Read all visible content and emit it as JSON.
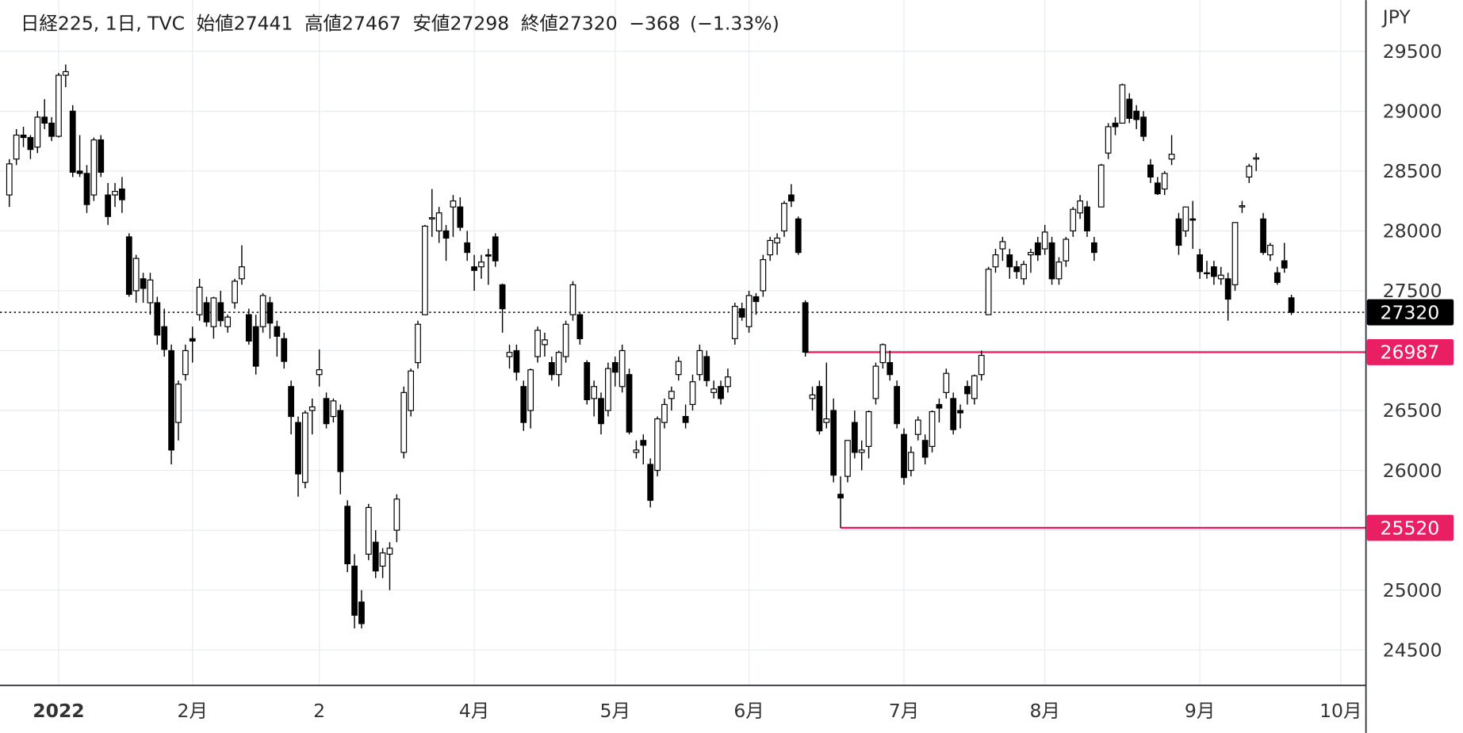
{
  "chart_data": {
    "type": "candlestick",
    "legend": {
      "name": "日経225, 1日, TVC",
      "labels": [
        "始値",
        "高値",
        "安値",
        "終値"
      ],
      "values": [
        27441,
        27467,
        27298,
        27320
      ],
      "change": "−368",
      "change_pct": "(−1.33%)"
    },
    "y_axis_label": "JPY",
    "ylim": [
      24204,
      29928
    ],
    "yticks": [
      24500,
      25000,
      25500,
      26000,
      26500,
      27000,
      27500,
      28000,
      28500,
      29000,
      29500
    ],
    "grid": true,
    "up_color": "#ffffff",
    "down_color": "#000000",
    "wick_color": "#000000",
    "price_lines": [
      {
        "value": 27320,
        "color": "#000000",
        "style": "dotted"
      },
      {
        "value": 26987,
        "color": "#e91e63",
        "style": "solid"
      },
      {
        "value": 25520,
        "color": "#e91e63",
        "style": "solid"
      }
    ],
    "categories": [
      null,
      null,
      null,
      null,
      null,
      null,
      null,
      "2022",
      null,
      null,
      null,
      null,
      null,
      null,
      null,
      null,
      null,
      null,
      null,
      null,
      null,
      null,
      null,
      null,
      null,
      null,
      "2月",
      null,
      null,
      null,
      null,
      null,
      null,
      null,
      null,
      null,
      null,
      null,
      null,
      null,
      null,
      null,
      null,
      null,
      "2",
      null,
      null,
      null,
      null,
      null,
      null,
      null,
      null,
      null,
      null,
      null,
      null,
      null,
      null,
      null,
      null,
      null,
      null,
      null,
      null,
      null,
      "4月",
      null,
      null,
      null,
      null,
      null,
      null,
      null,
      null,
      null,
      null,
      null,
      null,
      null,
      null,
      null,
      null,
      null,
      null,
      null,
      "5月",
      null,
      null,
      null,
      null,
      null,
      null,
      null,
      null,
      null,
      null,
      null,
      null,
      null,
      null,
      null,
      null,
      null,
      null,
      "6月",
      null,
      null,
      null,
      null,
      null,
      null,
      null,
      null,
      null,
      null,
      null,
      null,
      null,
      null,
      null,
      null,
      null,
      null,
      null,
      null,
      null,
      "7月",
      null,
      null,
      null,
      null,
      null,
      null,
      null,
      null,
      null,
      null,
      null,
      null,
      null,
      null,
      null,
      null,
      null,
      null,
      null,
      "8月",
      null,
      null,
      null,
      null,
      null,
      null,
      null,
      null,
      null,
      null,
      null,
      null,
      null,
      null,
      null,
      null,
      null,
      null,
      null,
      null,
      null,
      "9月",
      null,
      null,
      null,
      null,
      null,
      null,
      null,
      null,
      null,
      null,
      null,
      null,
      null,
      null,
      null,
      null,
      null,
      null,
      null,
      "10月"
    ],
    "ohlc": [
      [
        28300,
        28600,
        28200,
        28560
      ],
      [
        28600,
        28850,
        28550,
        28800
      ],
      [
        28800,
        28870,
        28700,
        28780
      ],
      [
        28780,
        28800,
        28600,
        28680
      ],
      [
        28700,
        29000,
        28650,
        28950
      ],
      [
        28950,
        29100,
        28850,
        28900
      ],
      [
        28900,
        28950,
        28750,
        28790
      ],
      [
        28790,
        29320,
        28780,
        29300
      ],
      [
        29300,
        29390,
        29200,
        29330
      ],
      [
        29000,
        29050,
        28450,
        28490
      ],
      [
        28500,
        28800,
        28450,
        28480
      ],
      [
        28480,
        28550,
        28150,
        28220
      ],
      [
        28300,
        28780,
        28250,
        28760
      ],
      [
        28760,
        28800,
        28450,
        28490
      ],
      [
        28300,
        28400,
        28050,
        28120
      ],
      [
        28300,
        28400,
        28200,
        28330
      ],
      [
        28350,
        28450,
        28150,
        28260
      ],
      [
        27950,
        27980,
        27450,
        27470
      ],
      [
        27500,
        27800,
        27400,
        27770
      ],
      [
        27600,
        27650,
        27400,
        27520
      ],
      [
        27400,
        27650,
        27300,
        27590
      ],
      [
        27400,
        27450,
        27050,
        27130
      ],
      [
        27200,
        27350,
        26950,
        27010
      ],
      [
        27000,
        27050,
        26050,
        26170
      ],
      [
        26400,
        26750,
        26250,
        26720
      ],
      [
        26800,
        27050,
        26750,
        27000
      ],
      [
        27100,
        27200,
        26900,
        27080
      ],
      [
        27300,
        27600,
        27250,
        27530
      ],
      [
        27400,
        27450,
        27200,
        27240
      ],
      [
        27200,
        27450,
        27100,
        27440
      ],
      [
        27400,
        27500,
        27200,
        27250
      ],
      [
        27200,
        27300,
        27150,
        27280
      ],
      [
        27400,
        27600,
        27350,
        27580
      ],
      [
        27600,
        27880,
        27550,
        27700
      ],
      [
        27300,
        27350,
        27050,
        27080
      ],
      [
        27200,
        27300,
        26800,
        26870
      ],
      [
        27200,
        27480,
        27150,
        27460
      ],
      [
        27400,
        27450,
        27100,
        27230
      ],
      [
        27200,
        27250,
        26950,
        27120
      ],
      [
        27100,
        27150,
        26850,
        26910
      ],
      [
        26700,
        26750,
        26300,
        26450
      ],
      [
        26400,
        26450,
        25780,
        25970
      ],
      [
        25900,
        26500,
        25850,
        26480
      ],
      [
        26500,
        26600,
        26300,
        26530
      ],
      [
        26800,
        27010,
        26700,
        26840
      ],
      [
        26600,
        26650,
        26350,
        26390
      ],
      [
        26450,
        26600,
        26400,
        26580
      ],
      [
        26500,
        26550,
        25800,
        25990
      ],
      [
        25700,
        25750,
        25150,
        25220
      ],
      [
        25200,
        25300,
        24680,
        24790
      ],
      [
        24900,
        25000,
        24680,
        24720
      ],
      [
        25300,
        25720,
        25250,
        25690
      ],
      [
        25400,
        25500,
        25100,
        25160
      ],
      [
        25200,
        25350,
        25100,
        25310
      ],
      [
        25300,
        25400,
        25000,
        25350
      ],
      [
        25500,
        25800,
        25400,
        25760
      ],
      [
        26150,
        26700,
        26100,
        26650
      ],
      [
        26500,
        26850,
        26450,
        26830
      ],
      [
        26900,
        27250,
        26850,
        27220
      ],
      [
        27300,
        28050,
        27300,
        28040
      ],
      [
        28100,
        28350,
        27950,
        28110
      ],
      [
        28000,
        28200,
        27900,
        28150
      ],
      [
        28000,
        28050,
        27750,
        27940
      ],
      [
        28200,
        28300,
        27950,
        28250
      ],
      [
        28200,
        28280,
        28000,
        28030
      ],
      [
        27900,
        28000,
        27750,
        27820
      ],
      [
        27700,
        27800,
        27500,
        27670
      ],
      [
        27700,
        27800,
        27600,
        27740
      ],
      [
        27800,
        27850,
        27550,
        27790
      ],
      [
        27950,
        27980,
        27700,
        27750
      ],
      [
        27550,
        27560,
        27150,
        27350
      ],
      [
        26950,
        27050,
        26850,
        26985
      ],
      [
        27000,
        27050,
        26750,
        26820
      ],
      [
        26700,
        26750,
        26330,
        26400
      ],
      [
        26500,
        26850,
        26350,
        26840
      ],
      [
        26950,
        27200,
        26900,
        27170
      ],
      [
        27050,
        27150,
        26950,
        27090
      ],
      [
        26900,
        26950,
        26750,
        26800
      ],
      [
        26800,
        27000,
        26700,
        26985
      ],
      [
        26950,
        27250,
        26900,
        27220
      ],
      [
        27300,
        27580,
        27250,
        27550
      ],
      [
        27300,
        27320,
        27050,
        27100
      ],
      [
        26900,
        26920,
        26550,
        26590
      ],
      [
        26600,
        26750,
        26450,
        26700
      ],
      [
        26600,
        26650,
        26300,
        26390
      ],
      [
        26500,
        26900,
        26450,
        26850
      ],
      [
        26900,
        26950,
        26700,
        26820
      ],
      [
        26700,
        27050,
        26650,
        27000
      ],
      [
        26800,
        26850,
        26300,
        26320
      ],
      [
        26150,
        26250,
        26100,
        26170
      ],
      [
        26250,
        26300,
        26050,
        26210
      ],
      [
        26050,
        26100,
        25690,
        25750
      ],
      [
        26000,
        26450,
        25950,
        26430
      ],
      [
        26400,
        26600,
        26350,
        26550
      ],
      [
        26600,
        26700,
        26500,
        26660
      ],
      [
        26800,
        26950,
        26750,
        26910
      ],
      [
        26450,
        26550,
        26350,
        26400
      ],
      [
        26550,
        26800,
        26500,
        26740
      ],
      [
        26800,
        27050,
        26750,
        27000
      ],
      [
        26950,
        27000,
        26700,
        26750
      ],
      [
        26650,
        26750,
        26600,
        26680
      ],
      [
        26700,
        26750,
        26550,
        26600
      ],
      [
        26700,
        26850,
        26650,
        26780
      ],
      [
        27100,
        27400,
        27050,
        27370
      ],
      [
        27350,
        27400,
        27250,
        27280
      ],
      [
        27200,
        27500,
        27150,
        27460
      ],
      [
        27450,
        27480,
        27300,
        27410
      ],
      [
        27500,
        27800,
        27450,
        27760
      ],
      [
        27800,
        27950,
        27750,
        27920
      ],
      [
        27900,
        27980,
        27800,
        27940
      ],
      [
        28000,
        28250,
        27950,
        28230
      ],
      [
        28300,
        28390,
        28200,
        28250
      ],
      [
        28100,
        28120,
        27800,
        27820
      ],
      [
        27400,
        27420,
        26950,
        26987
      ],
      [
        26600,
        26700,
        26500,
        26630
      ],
      [
        26700,
        26750,
        26300,
        26330
      ],
      [
        26400,
        26900,
        26350,
        26430
      ],
      [
        26500,
        26600,
        25900,
        25960
      ],
      [
        25800,
        25950,
        25520,
        25770
      ],
      [
        25950,
        26250,
        25900,
        26250
      ],
      [
        26400,
        26500,
        26100,
        26150
      ],
      [
        26150,
        26250,
        26000,
        26170
      ],
      [
        26200,
        26500,
        26100,
        26490
      ],
      [
        26600,
        26900,
        26550,
        26870
      ],
      [
        26900,
        27060,
        26850,
        27050
      ],
      [
        26900,
        27000,
        26750,
        26800
      ],
      [
        26700,
        26750,
        26350,
        26390
      ],
      [
        26300,
        26350,
        25880,
        25940
      ],
      [
        26000,
        26200,
        25950,
        26150
      ],
      [
        26300,
        26450,
        26250,
        26420
      ],
      [
        26250,
        26300,
        26050,
        26110
      ],
      [
        26200,
        26500,
        26150,
        26490
      ],
      [
        26550,
        26600,
        26400,
        26520
      ],
      [
        26650,
        26850,
        26600,
        26810
      ],
      [
        26600,
        26650,
        26300,
        26340
      ],
      [
        26500,
        26550,
        26350,
        26480
      ],
      [
        26700,
        26750,
        26550,
        26640
      ],
      [
        26600,
        26800,
        26550,
        26790
      ],
      [
        26800,
        27000,
        26750,
        26960
      ],
      [
        27300,
        27700,
        27300,
        27680
      ],
      [
        27700,
        27850,
        27650,
        27800
      ],
      [
        27850,
        27950,
        27750,
        27910
      ],
      [
        27800,
        27850,
        27600,
        27700
      ],
      [
        27700,
        27750,
        27600,
        27660
      ],
      [
        27600,
        27750,
        27550,
        27720
      ],
      [
        27800,
        27850,
        27650,
        27820
      ],
      [
        27900,
        27950,
        27750,
        27800
      ],
      [
        27850,
        28050,
        27800,
        27990
      ],
      [
        27900,
        27950,
        27550,
        27600
      ],
      [
        27600,
        27780,
        27550,
        27740
      ],
      [
        27750,
        27950,
        27700,
        27930
      ],
      [
        28000,
        28200,
        27950,
        28180
      ],
      [
        28150,
        28300,
        28100,
        28250
      ],
      [
        28200,
        28250,
        27950,
        28000
      ],
      [
        27900,
        27950,
        27750,
        27820
      ],
      [
        28200,
        28560,
        28200,
        28550
      ],
      [
        28650,
        28900,
        28600,
        28870
      ],
      [
        28900,
        28950,
        28800,
        28870
      ],
      [
        28900,
        29230,
        28900,
        29220
      ],
      [
        29100,
        29150,
        28900,
        28940
      ],
      [
        29000,
        29050,
        28850,
        28930
      ],
      [
        28950,
        29000,
        28750,
        28790
      ],
      [
        28550,
        28600,
        28400,
        28450
      ],
      [
        28400,
        28450,
        28300,
        28310
      ],
      [
        28350,
        28500,
        28300,
        28480
      ],
      [
        28600,
        28800,
        28550,
        28640
      ],
      [
        28100,
        28150,
        27800,
        27880
      ],
      [
        28000,
        28200,
        27950,
        28200
      ],
      [
        28100,
        28250,
        27850,
        28090
      ],
      [
        27800,
        27850,
        27600,
        27660
      ],
      [
        27650,
        27750,
        27600,
        27650
      ],
      [
        27700,
        27750,
        27550,
        27620
      ],
      [
        27600,
        27700,
        27550,
        27630
      ],
      [
        27600,
        27650,
        27250,
        27430
      ],
      [
        27550,
        28070,
        27500,
        28070
      ],
      [
        28200,
        28250,
        28150,
        28210
      ],
      [
        28450,
        28560,
        28400,
        28540
      ],
      [
        28600,
        28650,
        28500,
        28610
      ],
      [
        28100,
        28150,
        27800,
        27820
      ],
      [
        27800,
        27900,
        27750,
        27880
      ],
      [
        27650,
        27700,
        27550,
        27570
      ],
      [
        27750,
        27900,
        27650,
        27690
      ],
      [
        27441,
        27467,
        27298,
        27320
      ],
      null,
      null,
      null,
      null,
      null,
      null,
      null
    ]
  }
}
